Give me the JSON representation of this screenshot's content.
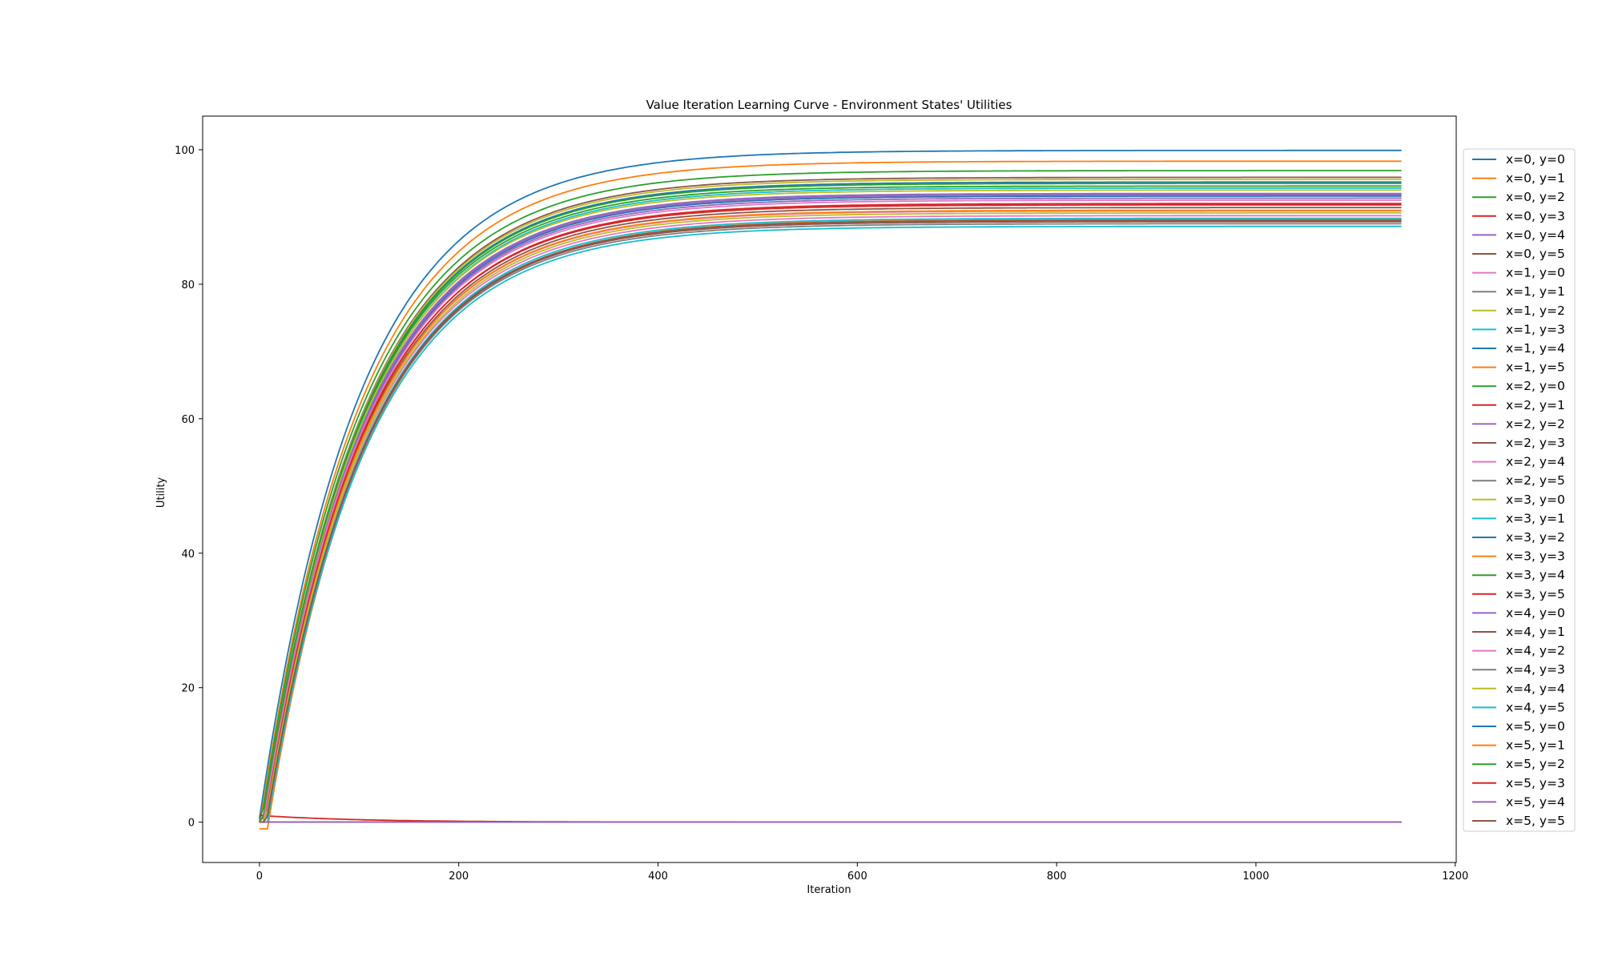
{
  "chart_data": {
    "type": "line",
    "title": "Value Iteration Learning Curve - Environment States' Utilities",
    "xlabel": "Iteration",
    "ylabel": "Utility",
    "xlim": [
      -57,
      1201
    ],
    "ylim": [
      -6,
      105
    ],
    "xticks": [
      0,
      200,
      400,
      600,
      800,
      1000,
      1200
    ],
    "yticks": [
      0,
      20,
      40,
      60,
      80,
      100
    ],
    "grid": false,
    "legend_position": "outside-right",
    "x_range": [
      0,
      1146
    ],
    "series": [
      {
        "name": "x=0, y=0",
        "color": "#1f77b4",
        "start": 0.5,
        "final": 99.9,
        "delay": 0
      },
      {
        "name": "x=0, y=1",
        "color": "#ff7f0e",
        "start": 0.0,
        "final": 98.3,
        "delay": 1
      },
      {
        "name": "x=0, y=2",
        "color": "#2ca02c",
        "start": 0.3,
        "final": 96.9,
        "delay": 2
      },
      {
        "name": "x=0, y=3",
        "color": "#d62728",
        "start": 1.0,
        "final": 0.0,
        "delay": 0
      },
      {
        "name": "x=0, y=4",
        "color": "#9467bd",
        "start": 0.5,
        "final": 93.5,
        "delay": 4
      },
      {
        "name": "x=0, y=5",
        "color": "#8c564b",
        "start": 0.0,
        "final": 95.9,
        "delay": 3
      },
      {
        "name": "x=1, y=0",
        "color": "#e377c2",
        "start": 0.0,
        "final": 90.9,
        "delay": 5
      },
      {
        "name": "x=1, y=1",
        "color": "#7f7f7f",
        "start": 0.0,
        "final": 0.0,
        "delay": 0
      },
      {
        "name": "x=1, y=2",
        "color": "#bcbd22",
        "start": 0.0,
        "final": 95.6,
        "delay": 3
      },
      {
        "name": "x=1, y=3",
        "color": "#17becf",
        "start": 0.0,
        "final": 94.3,
        "delay": 4
      },
      {
        "name": "x=1, y=4",
        "color": "#1f77b4",
        "start": 0.0,
        "final": 95.2,
        "delay": 3
      },
      {
        "name": "x=1, y=5",
        "color": "#ff7f0e",
        "start": -1.0,
        "final": 89.6,
        "delay": 8
      },
      {
        "name": "x=2, y=0",
        "color": "#2ca02c",
        "start": 0.0,
        "final": 94.6,
        "delay": 3
      },
      {
        "name": "x=2, y=1",
        "color": "#d62728",
        "start": 1.0,
        "final": 91.8,
        "delay": 5
      },
      {
        "name": "x=2, y=2",
        "color": "#9467bd",
        "start": 0.0,
        "final": 92.8,
        "delay": 4
      },
      {
        "name": "x=2, y=3",
        "color": "#8c564b",
        "start": 0.0,
        "final": 91.4,
        "delay": 5
      },
      {
        "name": "x=2, y=4",
        "color": "#e377c2",
        "start": 0.0,
        "final": 90.2,
        "delay": 6
      },
      {
        "name": "x=2, y=5",
        "color": "#7f7f7f",
        "start": 0.0,
        "final": 89.0,
        "delay": 7
      },
      {
        "name": "x=3, y=0",
        "color": "#bcbd22",
        "start": 0.0,
        "final": 94.0,
        "delay": 3
      },
      {
        "name": "x=3, y=1",
        "color": "#17becf",
        "start": 0.0,
        "final": 88.6,
        "delay": 8
      },
      {
        "name": "x=3, y=2",
        "color": "#1f77b4",
        "start": 0.0,
        "final": 93.1,
        "delay": 4
      },
      {
        "name": "x=3, y=3",
        "color": "#ff7f0e",
        "start": 0.0,
        "final": 91.0,
        "delay": 5
      },
      {
        "name": "x=3, y=4",
        "color": "#2ca02c",
        "start": 0.0,
        "final": 95.0,
        "delay": 3
      },
      {
        "name": "x=3, y=5",
        "color": "#d62728",
        "start": 0.0,
        "final": 92.0,
        "delay": 5
      },
      {
        "name": "x=4, y=0",
        "color": "#9467bd",
        "start": 0.0,
        "final": 93.3,
        "delay": 4
      },
      {
        "name": "x=4, y=1",
        "color": "#8c564b",
        "start": 0.0,
        "final": 89.3,
        "delay": 7
      },
      {
        "name": "x=4, y=2",
        "color": "#e377c2",
        "start": 0.0,
        "final": 92.5,
        "delay": 4
      },
      {
        "name": "x=4, y=3",
        "color": "#7f7f7f",
        "start": 0.0,
        "final": 0.0,
        "delay": 0
      },
      {
        "name": "x=4, y=4",
        "color": "#bcbd22",
        "start": 0.0,
        "final": 90.6,
        "delay": 6
      },
      {
        "name": "x=4, y=5",
        "color": "#17becf",
        "start": 0.0,
        "final": 89.8,
        "delay": 7
      },
      {
        "name": "x=5, y=0",
        "color": "#1f77b4",
        "start": 0.0,
        "final": 0.0,
        "delay": 0
      },
      {
        "name": "x=5, y=1",
        "color": "#ff7f0e",
        "start": 0.0,
        "final": 0.0,
        "delay": 0
      },
      {
        "name": "x=5, y=2",
        "color": "#2ca02c",
        "start": 0.0,
        "final": 0.0,
        "delay": 0
      },
      {
        "name": "x=5, y=3",
        "color": "#d62728",
        "start": 0.0,
        "final": 0.0,
        "delay": 0
      },
      {
        "name": "x=5, y=4",
        "color": "#9467bd",
        "start": 0.0,
        "final": 0.0,
        "delay": 0
      },
      {
        "name": "x=5, y=5",
        "color": "#8c564b",
        "start": 0.0,
        "final": 89.5,
        "delay": 7
      }
    ]
  }
}
